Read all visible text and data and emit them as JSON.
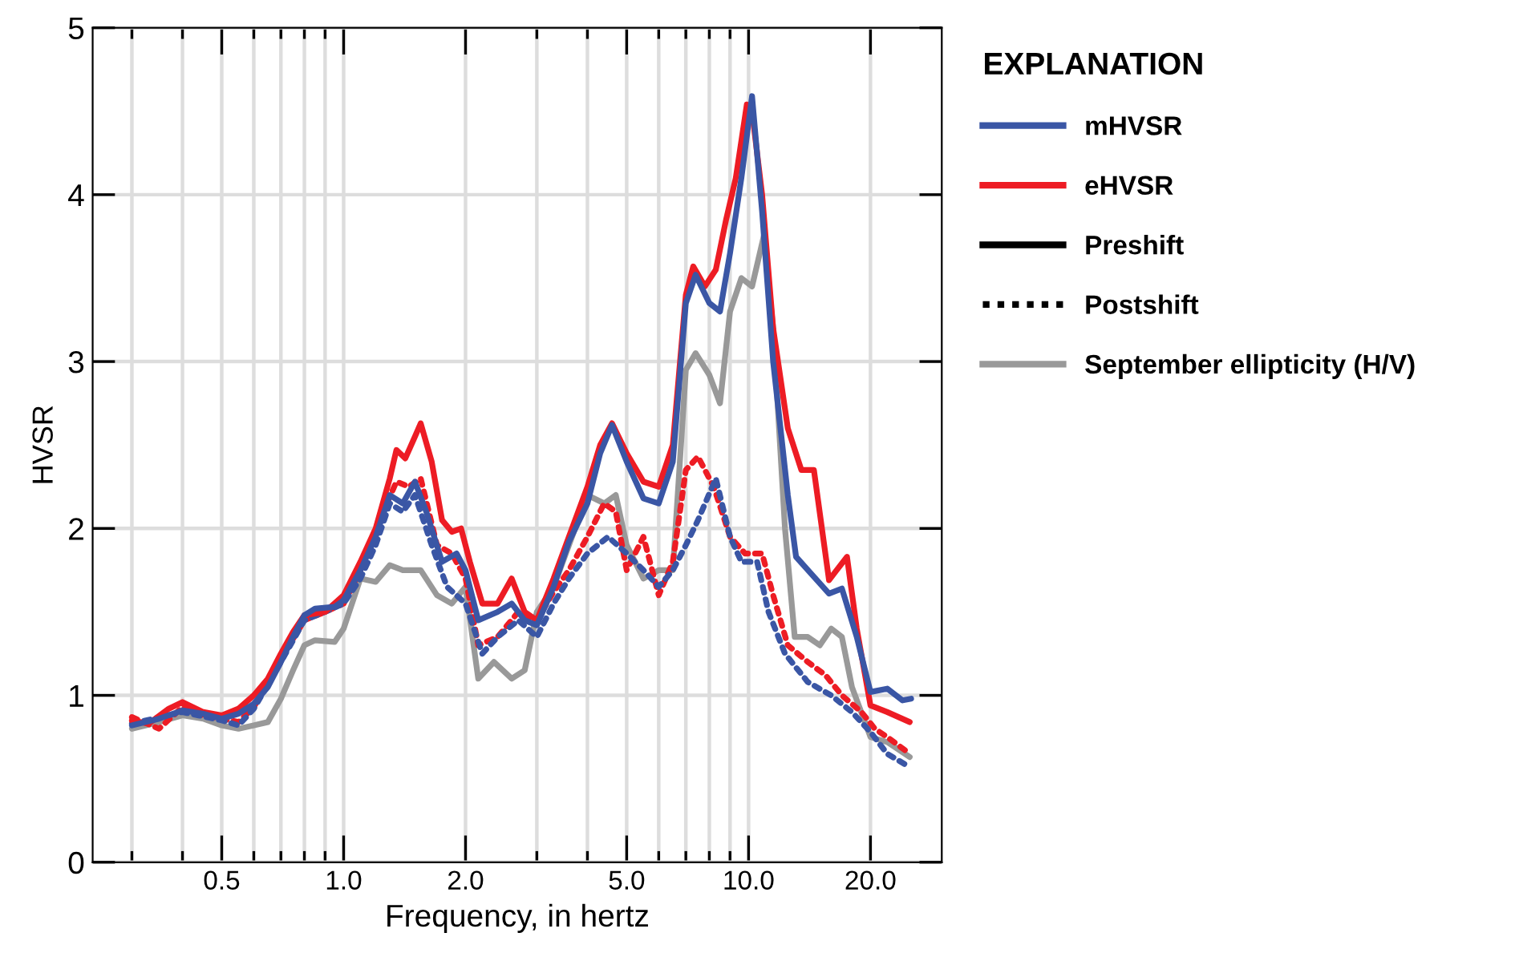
{
  "chart_data": {
    "type": "line",
    "xlabel": "Frequency, in hertz",
    "ylabel": "HVSR",
    "legend_title": "EXPLANATION",
    "legend": "right",
    "grid": true,
    "log": "x",
    "annotations": [
      "Preshift",
      "Postshift"
    ],
    "xlim": [
      0.24,
      30
    ],
    "ylim": [
      0,
      5
    ],
    "xticks": [
      {
        "value": 0.3,
        "label": null
      },
      {
        "value": 0.4,
        "label": null
      },
      {
        "value": 0.5,
        "label": "0.5"
      },
      {
        "value": 0.6,
        "label": null
      },
      {
        "value": 0.7,
        "label": null
      },
      {
        "value": 0.8,
        "label": null
      },
      {
        "value": 0.9,
        "label": null
      },
      {
        "value": 1,
        "label": "1.0"
      },
      {
        "value": 2,
        "label": "2.0"
      },
      {
        "value": 3,
        "label": null
      },
      {
        "value": 4,
        "label": null
      },
      {
        "value": 5,
        "label": "5.0"
      },
      {
        "value": 6,
        "label": null
      },
      {
        "value": 7,
        "label": null
      },
      {
        "value": 8,
        "label": null
      },
      {
        "value": 9,
        "label": null
      },
      {
        "value": 10,
        "label": "10.0"
      },
      {
        "value": 20,
        "label": "20.0"
      }
    ],
    "yticks": [
      0,
      1,
      2,
      3,
      4,
      5
    ],
    "series": [
      {
        "name": "September ellipticity (H/V)",
        "color": "#999999",
        "line_style": "solid",
        "x": [
          0.3,
          0.35,
          0.4,
          0.45,
          0.5,
          0.55,
          0.6,
          0.65,
          0.7,
          0.75,
          0.8,
          0.85,
          0.95,
          1.0,
          1.1,
          1.2,
          1.3,
          1.4,
          1.55,
          1.7,
          1.85,
          2.0,
          2.15,
          2.35,
          2.6,
          2.8,
          3.0,
          3.3,
          3.6,
          4.0,
          4.4,
          4.7,
          5.0,
          5.5,
          6.0,
          6.5,
          7.0,
          7.4,
          8.0,
          8.5,
          9.0,
          9.6,
          10.2,
          10.9,
          11.5,
          12.3,
          13.0,
          14,
          15,
          16,
          17,
          18,
          20,
          22,
          25
        ],
        "values": [
          0.8,
          0.84,
          0.88,
          0.86,
          0.82,
          0.8,
          0.82,
          0.84,
          0.98,
          1.15,
          1.3,
          1.33,
          1.32,
          1.4,
          1.7,
          1.68,
          1.78,
          1.75,
          1.75,
          1.6,
          1.55,
          1.65,
          1.1,
          1.2,
          1.1,
          1.15,
          1.5,
          1.65,
          1.9,
          2.2,
          2.15,
          2.2,
          1.9,
          1.7,
          1.75,
          1.75,
          2.95,
          3.05,
          2.92,
          2.75,
          3.3,
          3.5,
          3.45,
          3.75,
          3.2,
          2.0,
          1.35,
          1.35,
          1.3,
          1.4,
          1.35,
          1.05,
          0.75,
          0.72,
          0.63
        ]
      },
      {
        "color": "#ed1c24",
        "line_style": "dotted",
        "x": [
          0.3,
          0.35,
          0.4,
          0.45,
          0.5,
          0.55,
          0.6,
          0.7,
          0.8,
          0.9,
          1.0,
          1.1,
          1.2,
          1.35,
          1.45,
          1.55,
          1.7,
          1.85,
          2.0,
          2.15,
          2.4,
          2.7,
          3.0,
          3.3,
          3.6,
          4.0,
          4.4,
          4.7,
          5.0,
          5.5,
          6.0,
          6.5,
          7.0,
          7.5,
          8.2,
          9.0,
          9.8,
          10.8,
          11.5,
          12.5,
          14,
          15.5,
          17,
          19,
          20.5,
          22,
          25
        ],
        "values": [
          0.87,
          0.8,
          0.93,
          0.88,
          0.86,
          0.84,
          0.93,
          1.22,
          1.45,
          1.5,
          1.55,
          1.75,
          2.0,
          2.28,
          2.25,
          2.3,
          1.9,
          1.85,
          1.7,
          1.3,
          1.35,
          1.5,
          1.45,
          1.62,
          1.75,
          1.95,
          2.15,
          2.1,
          1.75,
          1.95,
          1.6,
          1.8,
          2.35,
          2.43,
          2.25,
          1.95,
          1.85,
          1.85,
          1.6,
          1.3,
          1.2,
          1.12,
          1.0,
          0.9,
          0.8,
          0.75,
          0.65
        ]
      },
      {
        "color": "#3a56a5",
        "line_style": "dotted",
        "x": [
          0.3,
          0.4,
          0.5,
          0.55,
          0.6,
          0.7,
          0.8,
          0.9,
          1.0,
          1.1,
          1.2,
          1.3,
          1.4,
          1.5,
          1.65,
          1.8,
          2.0,
          2.2,
          2.4,
          2.7,
          3.0,
          3.3,
          3.6,
          4.0,
          4.5,
          5.0,
          5.5,
          6.0,
          6.5,
          7.0,
          7.5,
          8.3,
          9.0,
          9.6,
          10.5,
          11.2,
          12.3,
          14,
          16,
          18,
          20,
          22,
          25
        ],
        "values": [
          0.83,
          0.9,
          0.85,
          0.82,
          0.92,
          1.2,
          1.45,
          1.5,
          1.55,
          1.7,
          1.9,
          2.15,
          2.1,
          2.2,
          1.9,
          1.65,
          1.55,
          1.25,
          1.35,
          1.45,
          1.35,
          1.55,
          1.7,
          1.85,
          1.95,
          1.85,
          1.75,
          1.65,
          1.75,
          1.9,
          2.05,
          2.3,
          1.95,
          1.8,
          1.8,
          1.5,
          1.25,
          1.08,
          1.0,
          0.9,
          0.78,
          0.65,
          0.57
        ]
      },
      {
        "name": "eHVSR",
        "color": "#ed1c24",
        "line_style": "solid",
        "x": [
          0.3,
          0.33,
          0.37,
          0.4,
          0.45,
          0.5,
          0.55,
          0.6,
          0.65,
          0.7,
          0.75,
          0.8,
          0.9,
          1.0,
          1.1,
          1.2,
          1.3,
          1.35,
          1.42,
          1.5,
          1.55,
          1.65,
          1.75,
          1.85,
          1.95,
          2.05,
          2.2,
          2.4,
          2.6,
          2.8,
          3.0,
          3.3,
          3.6,
          4.0,
          4.3,
          4.6,
          5.0,
          5.5,
          6.0,
          6.5,
          7.0,
          7.3,
          7.8,
          8.3,
          8.8,
          9.3,
          9.9,
          10.2,
          10.8,
          11.5,
          12.5,
          13.5,
          14.5,
          15.8,
          16.5,
          17.5,
          18.5,
          20,
          22,
          25
        ],
        "values": [
          0.85,
          0.83,
          0.92,
          0.96,
          0.9,
          0.88,
          0.92,
          1.0,
          1.1,
          1.25,
          1.38,
          1.48,
          1.5,
          1.6,
          1.8,
          2.0,
          2.3,
          2.47,
          2.42,
          2.55,
          2.63,
          2.4,
          2.05,
          1.98,
          2.0,
          1.8,
          1.55,
          1.55,
          1.7,
          1.5,
          1.45,
          1.7,
          1.95,
          2.25,
          2.5,
          2.63,
          2.45,
          2.28,
          2.25,
          2.5,
          3.4,
          3.57,
          3.45,
          3.55,
          3.85,
          4.1,
          4.54,
          4.5,
          4.0,
          3.2,
          2.6,
          2.35,
          2.35,
          1.69,
          1.75,
          1.83,
          1.4,
          0.94,
          0.9,
          0.84
        ]
      },
      {
        "name": "mHVSR",
        "color": "#3a56a5",
        "line_style": "solid",
        "x": [
          0.3,
          0.35,
          0.4,
          0.45,
          0.5,
          0.55,
          0.6,
          0.65,
          0.7,
          0.75,
          0.8,
          0.85,
          0.95,
          1.0,
          1.1,
          1.2,
          1.3,
          1.4,
          1.5,
          1.6,
          1.75,
          1.9,
          2.0,
          2.15,
          2.4,
          2.6,
          2.8,
          3.0,
          3.3,
          3.6,
          4.0,
          4.3,
          4.6,
          5.0,
          5.5,
          6.0,
          6.5,
          7.0,
          7.4,
          8.0,
          8.5,
          9.0,
          9.6,
          10.2,
          10.8,
          11.5,
          12.5,
          13.1,
          15.8,
          17,
          18.5,
          20,
          22,
          24,
          25.2
        ],
        "values": [
          0.82,
          0.86,
          0.91,
          0.89,
          0.86,
          0.89,
          0.95,
          1.05,
          1.2,
          1.35,
          1.48,
          1.52,
          1.53,
          1.57,
          1.75,
          1.95,
          2.2,
          2.15,
          2.28,
          2.1,
          1.8,
          1.85,
          1.75,
          1.45,
          1.5,
          1.55,
          1.45,
          1.42,
          1.65,
          1.92,
          2.15,
          2.45,
          2.62,
          2.4,
          2.18,
          2.15,
          2.4,
          3.35,
          3.52,
          3.35,
          3.3,
          3.65,
          4.1,
          4.59,
          3.9,
          3.0,
          2.2,
          1.83,
          1.61,
          1.64,
          1.35,
          1.02,
          1.04,
          0.97,
          0.98
        ]
      }
    ]
  }
}
